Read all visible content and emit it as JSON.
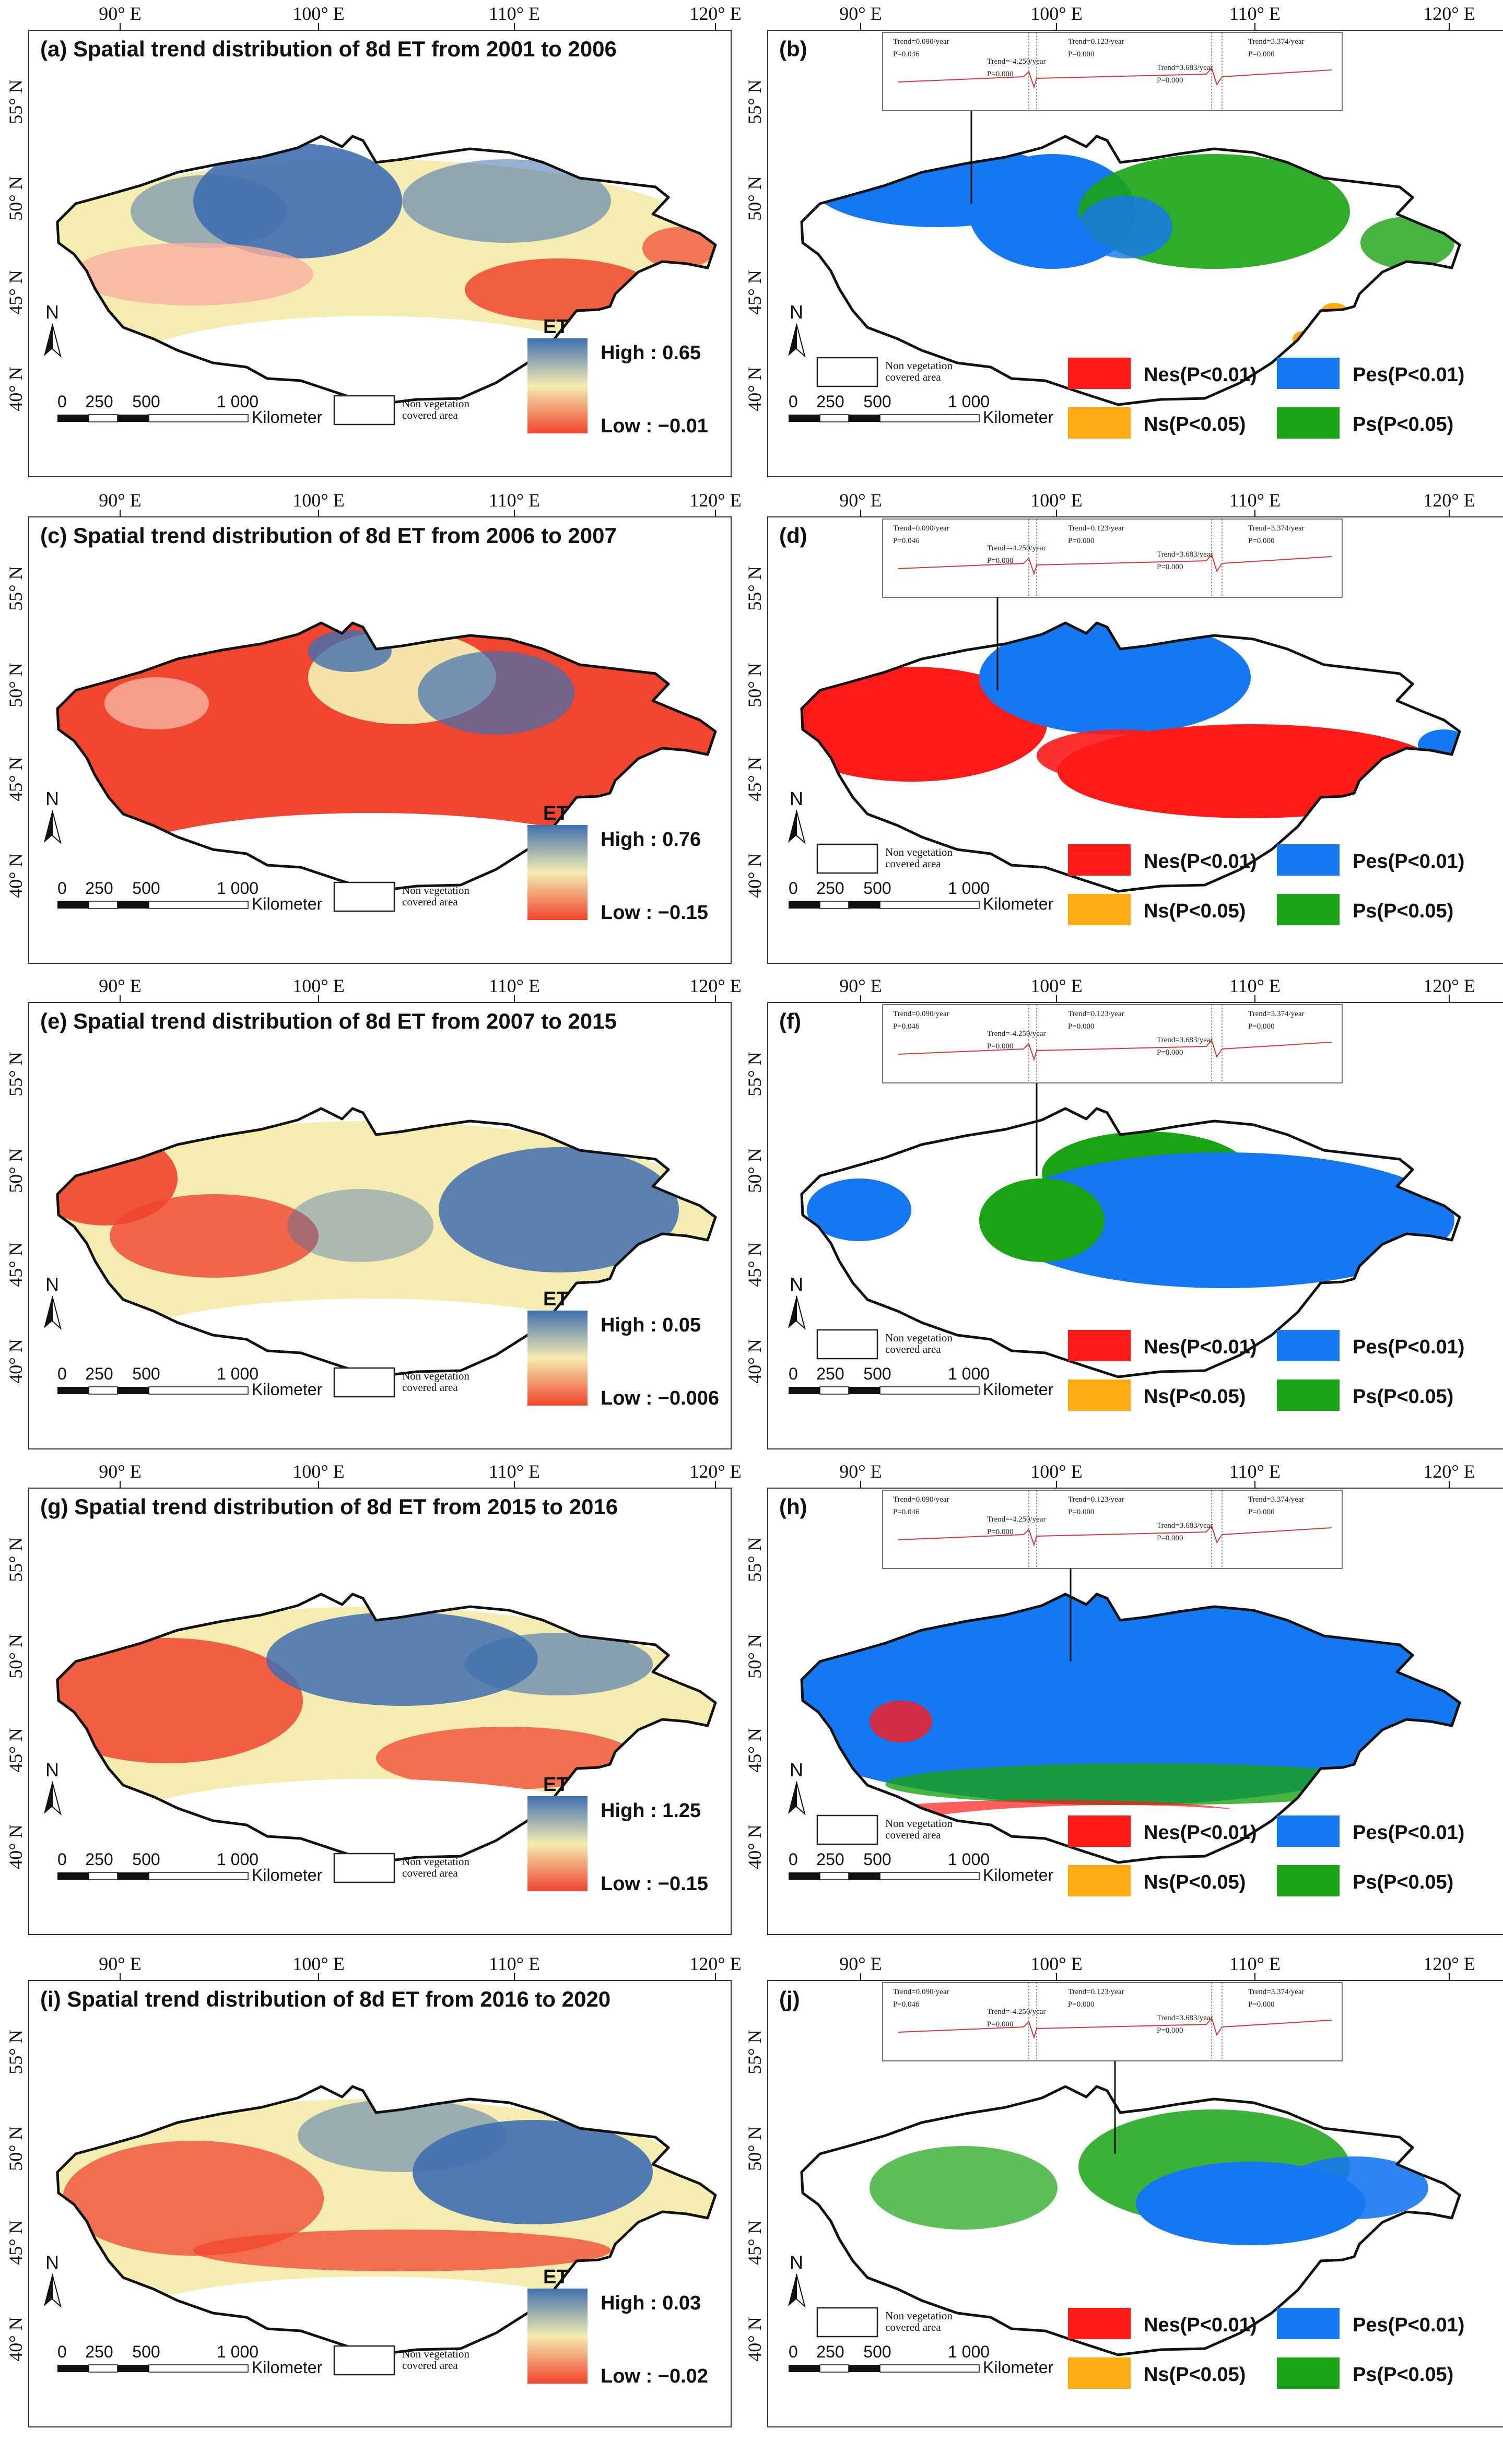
{
  "lon_labels": [
    "90° E",
    "100° E",
    "110° E",
    "120° E"
  ],
  "lat_labels": [
    "55° N",
    "50° N",
    "45° N",
    "40° N"
  ],
  "north_label": "N",
  "scale": {
    "ticks": [
      "0",
      "250",
      "500",
      "1 000"
    ],
    "unit": "Kilometer"
  },
  "non_vegetation_label": [
    "Non vegetation",
    "covered area"
  ],
  "et_label": "ET",
  "trend_legend": {
    "nes": "Nes(P<0.01)",
    "pes": "Pes(P<0.01)",
    "ns": "Ns(P<0.05)",
    "ps": "Ps(P<0.05)"
  },
  "inset": {
    "trends": [
      "Trend=0.090/year",
      "Trend=0.123/year",
      "Trend=3.374/year"
    ],
    "pvalues": [
      "P=0.046",
      "P=0.000",
      "P=0.000"
    ],
    "drops": [
      "Trend=-4.250/year",
      "Trend=3.683/year"
    ],
    "drop_p": [
      "P=0.000",
      "P=0.000"
    ]
  },
  "colors": {
    "nes": "#ff1a1a",
    "pes": "#1677f2",
    "ns": "#ffab12",
    "ps": "#1aa314",
    "high": "#3f6fb0",
    "mid": "#f4ecb0",
    "low": "#f0452e"
  },
  "panels": [
    {
      "id": "a",
      "title": "(a) Spatial trend distribution of 8d ET from 2001 to 2006",
      "high": "High : 0.65",
      "low": "Low : −0.01",
      "pattern": "a"
    },
    {
      "id": "b",
      "title": "(b)",
      "pattern": "b"
    },
    {
      "id": "c",
      "title": "(c) Spatial trend distribution of 8d ET from 2006 to 2007",
      "high": "High : 0.76",
      "low": "Low : −0.15",
      "pattern": "c"
    },
    {
      "id": "d",
      "title": "(d)",
      "pattern": "d"
    },
    {
      "id": "e",
      "title": "(e) Spatial trend distribution of 8d ET from 2007 to 2015",
      "high": "High : 0.05",
      "low": "Low : −0.006",
      "pattern": "e"
    },
    {
      "id": "f",
      "title": "(f)",
      "pattern": "f"
    },
    {
      "id": "g",
      "title": "(g) Spatial trend distribution of 8d ET from 2015 to 2016",
      "high": "High : 1.25",
      "low": "Low : −0.15",
      "pattern": "g"
    },
    {
      "id": "h",
      "title": "(h)",
      "pattern": "h"
    },
    {
      "id": "i",
      "title": "(i) Spatial trend distribution of 8d ET from 2016 to 2020",
      "high": "High : 0.03",
      "low": "Low : −0.02",
      "pattern": "i"
    },
    {
      "id": "j",
      "title": "(j)",
      "pattern": "j"
    }
  ]
}
